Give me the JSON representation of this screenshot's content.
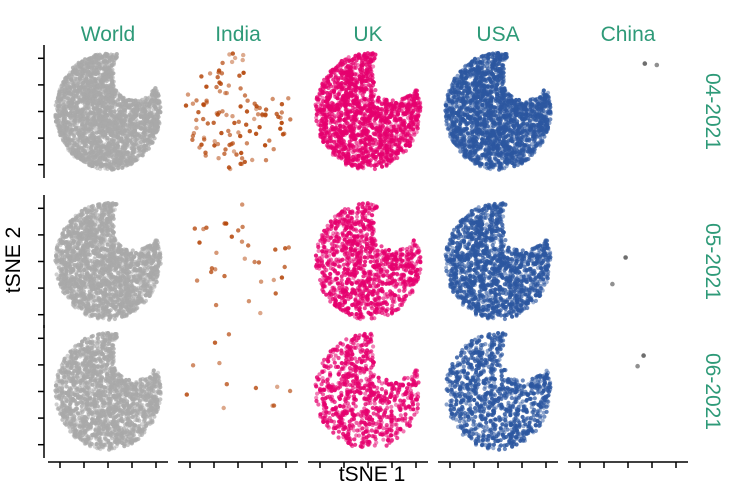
{
  "chart_data": {
    "type": "scatter",
    "layout": "facet-grid",
    "xlabel": "tSNE 1",
    "ylabel": "tSNE 2",
    "columns": [
      "World",
      "India",
      "UK",
      "USA",
      "China"
    ],
    "rows": [
      "04-2021",
      "05-2021",
      "06-2021"
    ],
    "strip_color": "#2e9a78",
    "colors": {
      "World": "#a9a9a9",
      "India": "#b5470b",
      "UK": "#e5006e",
      "USA": "#2c57a0",
      "China": "#555555"
    },
    "xlim": [
      -50,
      50
    ],
    "ylim": [
      -50,
      50
    ],
    "x_ticks": [
      -40,
      -20,
      0,
      20,
      40
    ],
    "y_ticks": [
      -40,
      -20,
      0,
      20,
      40
    ],
    "tick_labels_shown": false,
    "point_counts": {
      "World": [
        2400,
        2000,
        1700
      ],
      "India": [
        115,
        32,
        12
      ],
      "UK": [
        1500,
        1000,
        750
      ],
      "USA": [
        1900,
        1400,
        950
      ],
      "China": [
        2,
        2,
        2
      ]
    },
    "china_points": [
      [
        [
          14,
          36
        ],
        [
          24,
          35
        ]
      ],
      [
        [
          -2,
          3
        ],
        [
          -13,
          -17
        ]
      ],
      [
        [
          13,
          27
        ],
        [
          8,
          19
        ]
      ]
    ]
  }
}
